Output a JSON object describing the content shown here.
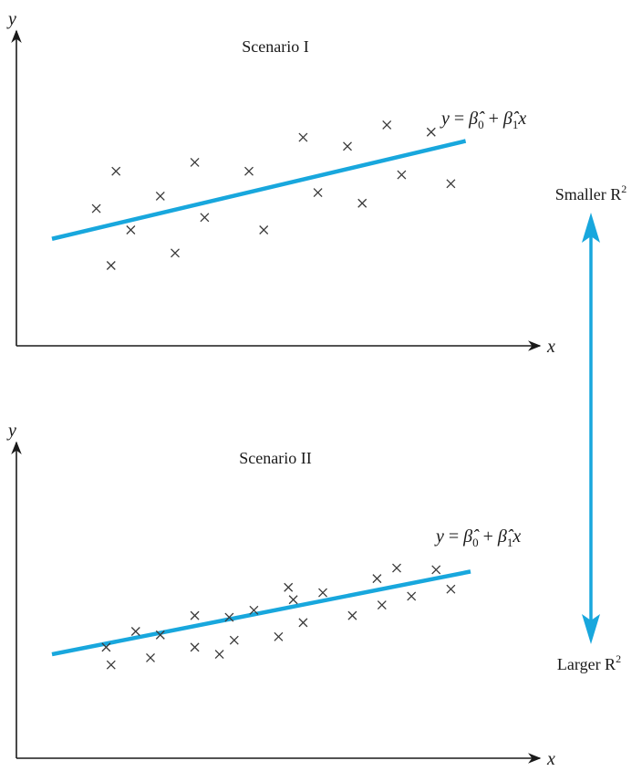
{
  "accent_color": "#18a7dd",
  "chart_data": [
    {
      "type": "scatter",
      "title": "Scenario I",
      "xlabel": "x",
      "ylabel": "y",
      "grid": false,
      "fit_label": "y = β̂0 + β̂1x",
      "xlim": [
        0,
        100
      ],
      "ylim": [
        0,
        100
      ],
      "points": [
        {
          "x": 14,
          "y": 52
        },
        {
          "x": 18,
          "y": 73
        },
        {
          "x": 17,
          "y": 20
        },
        {
          "x": 21,
          "y": 40
        },
        {
          "x": 27,
          "y": 59
        },
        {
          "x": 30,
          "y": 27
        },
        {
          "x": 34,
          "y": 78
        },
        {
          "x": 36,
          "y": 47
        },
        {
          "x": 45,
          "y": 73
        },
        {
          "x": 48,
          "y": 40
        },
        {
          "x": 56,
          "y": 92
        },
        {
          "x": 59,
          "y": 61
        },
        {
          "x": 65,
          "y": 87
        },
        {
          "x": 68,
          "y": 55
        },
        {
          "x": 73,
          "y": 99
        },
        {
          "x": 76,
          "y": 71
        },
        {
          "x": 82,
          "y": 95
        },
        {
          "x": 86,
          "y": 66
        }
      ],
      "fit": [
        {
          "x": 5,
          "y": 35
        },
        {
          "x": 89,
          "y": 90
        }
      ]
    },
    {
      "type": "scatter",
      "title": "Scenario II",
      "xlabel": "x",
      "ylabel": "y",
      "grid": false,
      "fit_label": "y = β̂0 + β̂1x",
      "xlim": [
        0,
        100
      ],
      "ylim": [
        0,
        100
      ],
      "points": [
        {
          "x": 16,
          "y": 34
        },
        {
          "x": 17,
          "y": 24
        },
        {
          "x": 22,
          "y": 43
        },
        {
          "x": 25,
          "y": 28
        },
        {
          "x": 27,
          "y": 41
        },
        {
          "x": 34,
          "y": 52
        },
        {
          "x": 34,
          "y": 34
        },
        {
          "x": 39,
          "y": 30
        },
        {
          "x": 41,
          "y": 51
        },
        {
          "x": 42,
          "y": 38
        },
        {
          "x": 46,
          "y": 55
        },
        {
          "x": 51,
          "y": 40
        },
        {
          "x": 53,
          "y": 68
        },
        {
          "x": 54,
          "y": 61
        },
        {
          "x": 56,
          "y": 48
        },
        {
          "x": 60,
          "y": 65
        },
        {
          "x": 66,
          "y": 52
        },
        {
          "x": 71,
          "y": 73
        },
        {
          "x": 72,
          "y": 58
        },
        {
          "x": 75,
          "y": 79
        },
        {
          "x": 78,
          "y": 63
        },
        {
          "x": 83,
          "y": 78
        },
        {
          "x": 86,
          "y": 67
        }
      ],
      "fit": [
        {
          "x": 5,
          "y": 30
        },
        {
          "x": 90,
          "y": 77
        }
      ]
    }
  ],
  "comparison": {
    "top_label": "Smaller R",
    "bottom_label": "Larger R",
    "exponent": "2"
  }
}
